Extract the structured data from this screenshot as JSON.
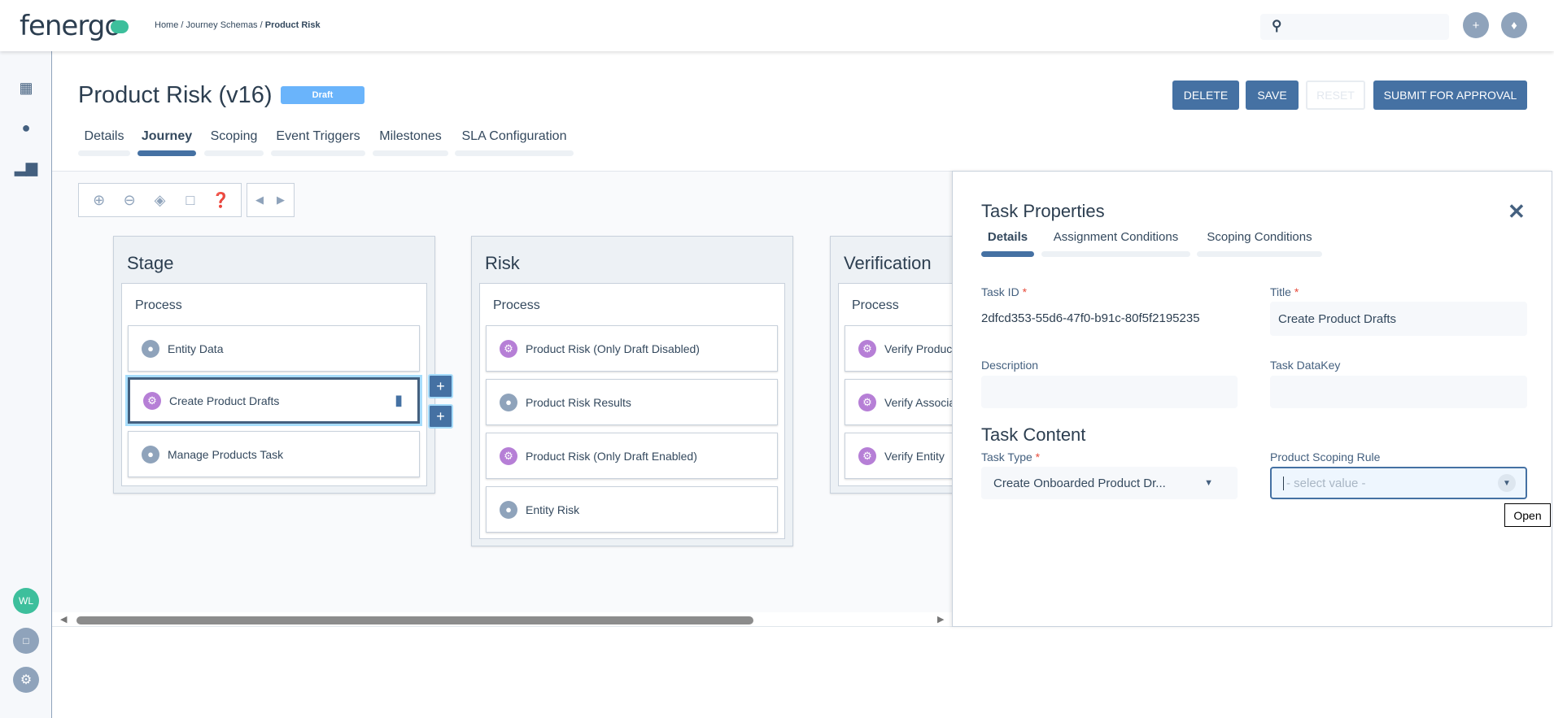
{
  "header": {
    "logo": "fenergo",
    "breadcrumb": {
      "home": "Home",
      "sep": " / ",
      "schemas": "Journey Schemas",
      "current": "Product Risk"
    },
    "search_placeholder": ""
  },
  "sidebar": {
    "user_initials": "WL",
    "icons": [
      "dashboard-icon",
      "user-icon",
      "chart-icon",
      "book-icon",
      "gear-icon"
    ]
  },
  "page": {
    "title": "Product Risk (v16)",
    "status": "Draft",
    "buttons": {
      "delete": "DELETE",
      "save": "SAVE",
      "reset": "RESET",
      "submit": "SUBMIT FOR APPROVAL"
    },
    "tabs": [
      {
        "label": "Details"
      },
      {
        "label": "Journey"
      },
      {
        "label": "Scoping"
      },
      {
        "label": "Event Triggers"
      },
      {
        "label": "Milestones"
      },
      {
        "label": "SLA Configuration"
      }
    ],
    "active_tab": "Journey"
  },
  "journey": {
    "stages": [
      {
        "name": "Stage",
        "process": "Process",
        "tasks": [
          {
            "label": "Entity Data",
            "type": "user"
          },
          {
            "label": "Create Product Drafts",
            "type": "system"
          },
          {
            "label": "Manage Products Task",
            "type": "user"
          }
        ]
      },
      {
        "name": "Risk",
        "process": "Process",
        "tasks": [
          {
            "label": "Product Risk (Only Draft Disabled)",
            "type": "system"
          },
          {
            "label": "Product Risk Results",
            "type": "user"
          },
          {
            "label": "Product Risk (Only Draft Enabled)",
            "type": "system"
          },
          {
            "label": "Entity Risk",
            "type": "user"
          }
        ]
      },
      {
        "name": "Verification",
        "process": "Process",
        "tasks": [
          {
            "label": "Verify Products",
            "type": "system"
          },
          {
            "label": "Verify Associations",
            "type": "system"
          },
          {
            "label": "Verify Entity",
            "type": "system"
          }
        ]
      }
    ]
  },
  "panel": {
    "title": "Task Properties",
    "tabs": [
      {
        "label": "Details"
      },
      {
        "label": "Assignment Conditions"
      },
      {
        "label": "Scoping Conditions"
      }
    ],
    "task_id_label": "Task ID",
    "task_id": "2dfcd353-55d6-47f0-b91c-80f5f2195235",
    "title_label": "Title",
    "title_value": "Create Product Drafts",
    "description_label": "Description",
    "description_value": "",
    "datakey_label": "Task DataKey",
    "datakey_value": "",
    "content_heading": "Task Content",
    "task_type_label": "Task Type",
    "task_type_value": "Create Onboarded Product Dr...",
    "scoping_rule_label": "Product Scoping Rule",
    "scoping_rule_placeholder": "- select value -",
    "tooltip": "Open",
    "required_mark": "*"
  },
  "colors": {
    "primary": "#4571a3",
    "draft": "#6ab4fb",
    "system_task": "#b67fd6",
    "user_task": "#8fa3bb",
    "avatar": "#3dbf9c"
  }
}
